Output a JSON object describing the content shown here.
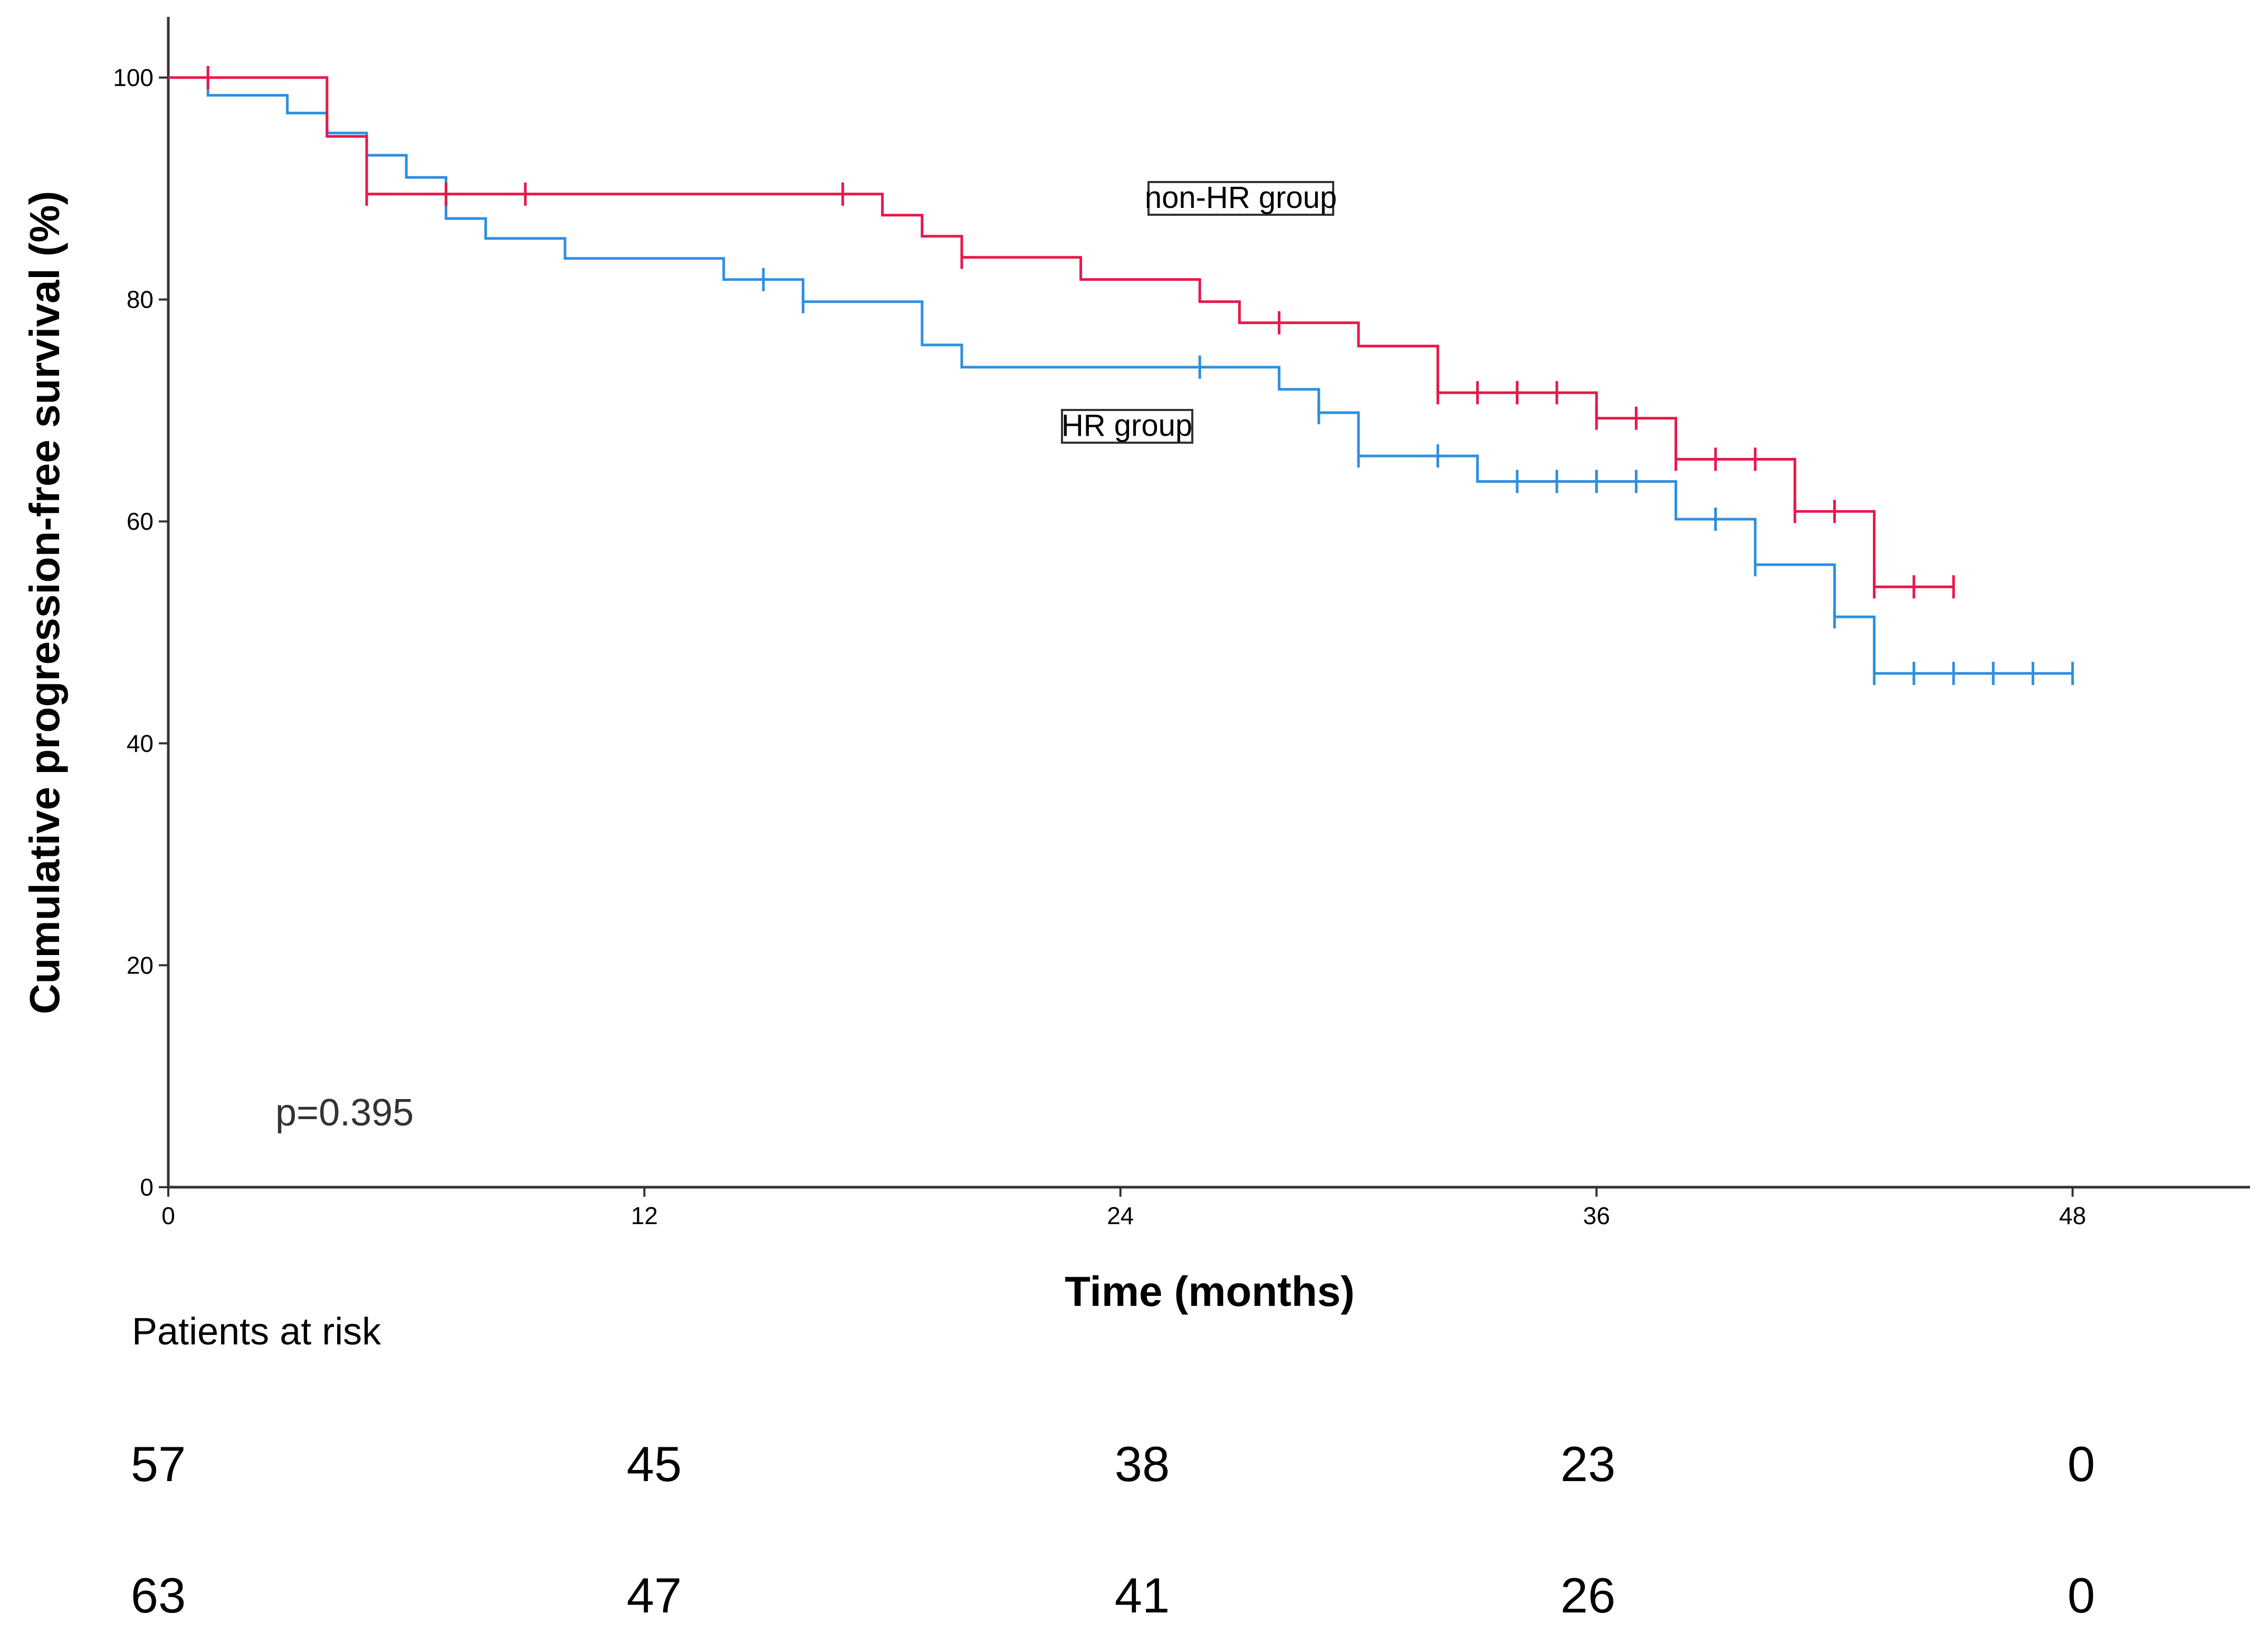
{
  "chart_data": {
    "type": "line",
    "subtype": "kaplan-meier step plot",
    "title": "",
    "xlabel": "Time (months)",
    "ylabel": "Cumulative progression-free survival (%)",
    "xlim": [
      0,
      52
    ],
    "ylim": [
      0,
      105
    ],
    "xticks": [
      0,
      12,
      24,
      36,
      48
    ],
    "yticks": [
      0,
      20,
      40,
      60,
      80,
      100
    ],
    "grid": false,
    "series": [
      {
        "name": "non-HR group",
        "color": "#e8174a",
        "steps": [
          [
            0,
            100
          ],
          [
            4,
            100
          ],
          [
            4,
            94.7
          ],
          [
            5,
            94.7
          ],
          [
            5,
            89.5
          ],
          [
            18,
            89.5
          ],
          [
            18,
            87.6
          ],
          [
            19,
            87.6
          ],
          [
            19,
            85.7
          ],
          [
            20,
            85.7
          ],
          [
            20,
            83.8
          ],
          [
            23,
            83.8
          ],
          [
            23,
            81.8
          ],
          [
            26,
            81.8
          ],
          [
            26,
            79.8
          ],
          [
            27,
            79.8
          ],
          [
            27,
            77.9
          ],
          [
            30,
            77.9
          ],
          [
            30,
            75.8
          ],
          [
            32,
            75.8
          ],
          [
            32,
            71.6
          ],
          [
            36,
            71.6
          ],
          [
            36,
            69.3
          ],
          [
            38,
            69.3
          ],
          [
            38,
            65.6
          ],
          [
            41,
            65.6
          ],
          [
            41,
            60.9
          ],
          [
            43,
            60.9
          ],
          [
            43,
            54.1
          ],
          [
            45,
            54.1
          ]
        ],
        "censored": [
          [
            1,
            100
          ],
          [
            5,
            89.5
          ],
          [
            7,
            89.5
          ],
          [
            9,
            89.5
          ],
          [
            17,
            89.5
          ],
          [
            20,
            83.8
          ],
          [
            28,
            77.9
          ],
          [
            32,
            71.6
          ],
          [
            33,
            71.6
          ],
          [
            34,
            71.6
          ],
          [
            34,
            71.6
          ],
          [
            35,
            71.6
          ],
          [
            36,
            69.3
          ],
          [
            37,
            69.3
          ],
          [
            38,
            65.6
          ],
          [
            39,
            65.6
          ],
          [
            40,
            65.6
          ],
          [
            41,
            60.9
          ],
          [
            42,
            60.9
          ],
          [
            43,
            54.1
          ],
          [
            44,
            54.1
          ],
          [
            45,
            54.1
          ]
        ]
      },
      {
        "name": "HR group",
        "color": "#2e8fe0",
        "steps": [
          [
            0,
            100
          ],
          [
            1,
            100
          ],
          [
            1,
            98.4
          ],
          [
            3,
            98.4
          ],
          [
            3,
            96.8
          ],
          [
            4,
            96.8
          ],
          [
            4,
            95.0
          ],
          [
            5,
            95.0
          ],
          [
            5,
            93.0
          ],
          [
            6,
            93.0
          ],
          [
            6,
            91.0
          ],
          [
            7,
            91.0
          ],
          [
            7,
            87.3
          ],
          [
            8,
            87.3
          ],
          [
            8,
            85.5
          ],
          [
            10,
            85.5
          ],
          [
            10,
            83.7
          ],
          [
            14,
            83.7
          ],
          [
            14,
            81.8
          ],
          [
            16,
            81.8
          ],
          [
            16,
            79.8
          ],
          [
            19,
            79.8
          ],
          [
            19,
            75.9
          ],
          [
            20,
            75.9
          ],
          [
            20,
            73.9
          ],
          [
            28,
            73.9
          ],
          [
            28,
            71.9
          ],
          [
            29,
            71.9
          ],
          [
            29,
            69.8
          ],
          [
            30,
            69.8
          ],
          [
            30,
            65.9
          ],
          [
            33,
            65.9
          ],
          [
            33,
            63.6
          ],
          [
            38,
            63.6
          ],
          [
            38,
            60.2
          ],
          [
            40,
            60.2
          ],
          [
            40,
            56.1
          ],
          [
            42,
            56.1
          ],
          [
            42,
            51.4
          ],
          [
            43,
            51.4
          ],
          [
            43,
            46.3
          ],
          [
            48,
            46.3
          ]
        ],
        "censored": [
          [
            15,
            81.8
          ],
          [
            16,
            79.8
          ],
          [
            26,
            73.9
          ],
          [
            29,
            69.8
          ],
          [
            30,
            65.9
          ],
          [
            32,
            65.9
          ],
          [
            34,
            63.6
          ],
          [
            35,
            63.6
          ],
          [
            36,
            63.6
          ],
          [
            36,
            63.6
          ],
          [
            37,
            63.6
          ],
          [
            39,
            60.2
          ],
          [
            39,
            60.2
          ],
          [
            40,
            56.1
          ],
          [
            42,
            51.4
          ],
          [
            43,
            46.3
          ],
          [
            44,
            46.3
          ],
          [
            45,
            46.3
          ],
          [
            46,
            46.3
          ],
          [
            47,
            46.3
          ],
          [
            48,
            46.3
          ]
        ]
      }
    ],
    "annotations": {
      "label_nonhr": "non-HR group",
      "label_hr": "HR group",
      "pvalue": "p=0.395"
    },
    "risk_table": {
      "title": "Patients at risk",
      "times": [
        0,
        12,
        24,
        36,
        48
      ],
      "rows": [
        [
          "57",
          "45",
          "38",
          "23",
          "0"
        ],
        [
          "63",
          "47",
          "41",
          "26",
          "0"
        ]
      ]
    }
  }
}
